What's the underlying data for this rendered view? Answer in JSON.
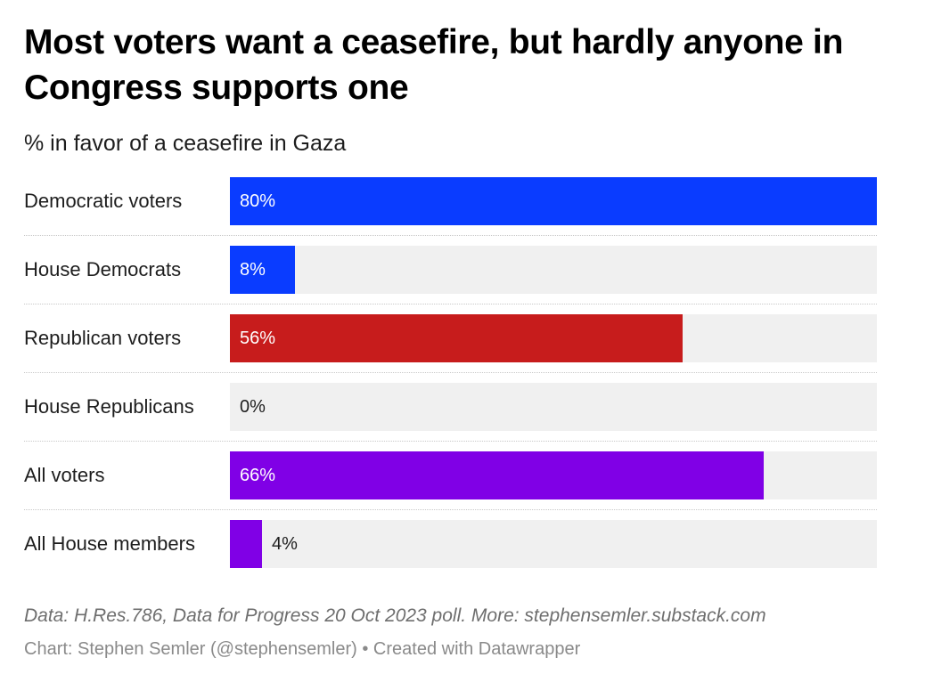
{
  "chart_data": {
    "type": "bar",
    "orientation": "horizontal",
    "title": "Most voters want a ceasefire, but hardly anyone in Congress supports one",
    "subtitle": "% in favor of a ceasefire in Gaza",
    "categories": [
      "Democratic voters",
      "House Democrats",
      "Republican voters",
      "House Republicans",
      "All voters",
      "All House members"
    ],
    "values": [
      80,
      8,
      56,
      0,
      66,
      4
    ],
    "value_labels": [
      "80%",
      "8%",
      "56%",
      "0%",
      "66%",
      "4%"
    ],
    "colors": [
      "#0a3cff",
      "#0a3cff",
      "#c71c1c",
      "#c71c1c",
      "#8000e6",
      "#8000e6"
    ],
    "xlim": [
      0,
      80
    ],
    "track_color": "#f0f0f0",
    "grid": false,
    "legend": "none"
  },
  "footer": {
    "notes": "Data: H.Res.786, Data for Progress 20 Oct 2023 poll. More: stephensemler.substack.com",
    "byline": "Chart: Stephen Semler (@stephensemler) • Created with Datawrapper"
  }
}
